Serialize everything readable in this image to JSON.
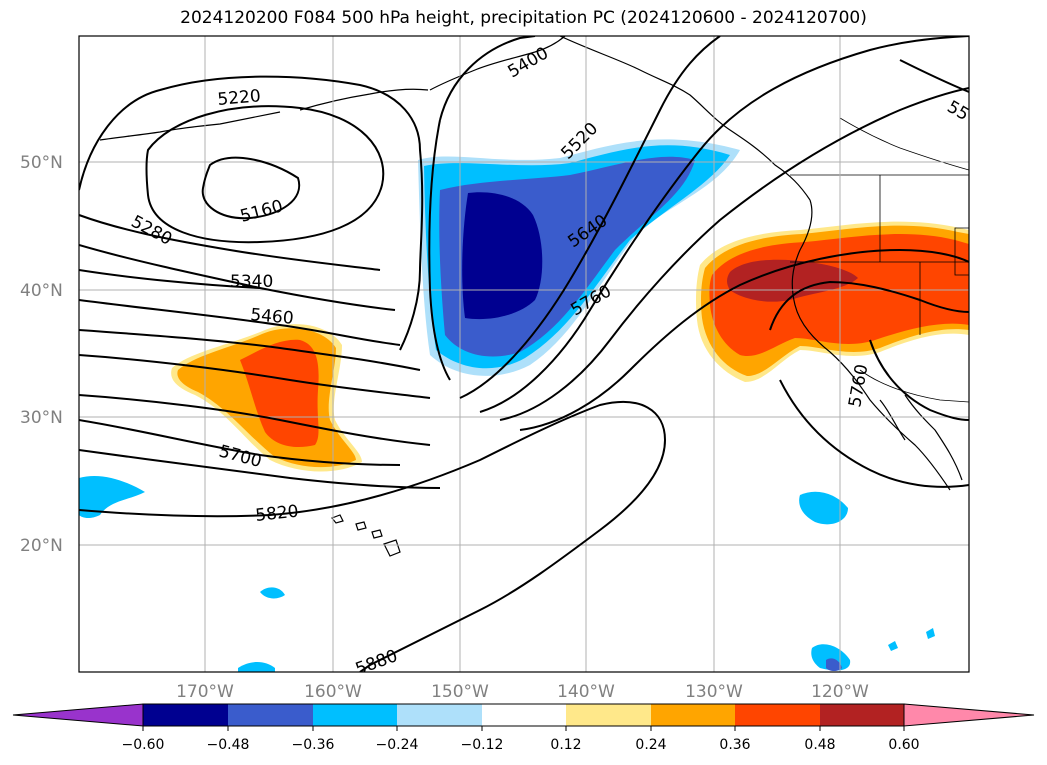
{
  "title": "2024120200 F084 500 hPa height, precipitation PC (2024120600 - 2024120700)",
  "map": {
    "lat_ticks": [
      "50°N",
      "40°N",
      "30°N",
      "20°N"
    ],
    "lon_ticks": [
      "170°W",
      "160°W",
      "150°W",
      "140°W",
      "130°W",
      "120°W"
    ],
    "contour_labels": [
      "5220",
      "5160",
      "5280",
      "5340",
      "5460",
      "5400",
      "5520",
      "5640",
      "5760",
      "5700",
      "5820",
      "5880",
      "5760",
      "55"
    ],
    "contour_color": "#000000",
    "grid": true
  },
  "colorbar": {
    "tick_labels": [
      "−0.60",
      "−0.48",
      "−0.36",
      "−0.24",
      "−0.12",
      "0.12",
      "0.24",
      "0.36",
      "0.48",
      "0.60"
    ],
    "colors": [
      "#9933cc",
      "#000090",
      "#3a5ccc",
      "#00bfff",
      "#aee0fa",
      "#ffffff",
      "#ffe88a",
      "#ffa500",
      "#ff4500",
      "#b22222",
      "#ff88aa"
    ],
    "extend": "both"
  }
}
